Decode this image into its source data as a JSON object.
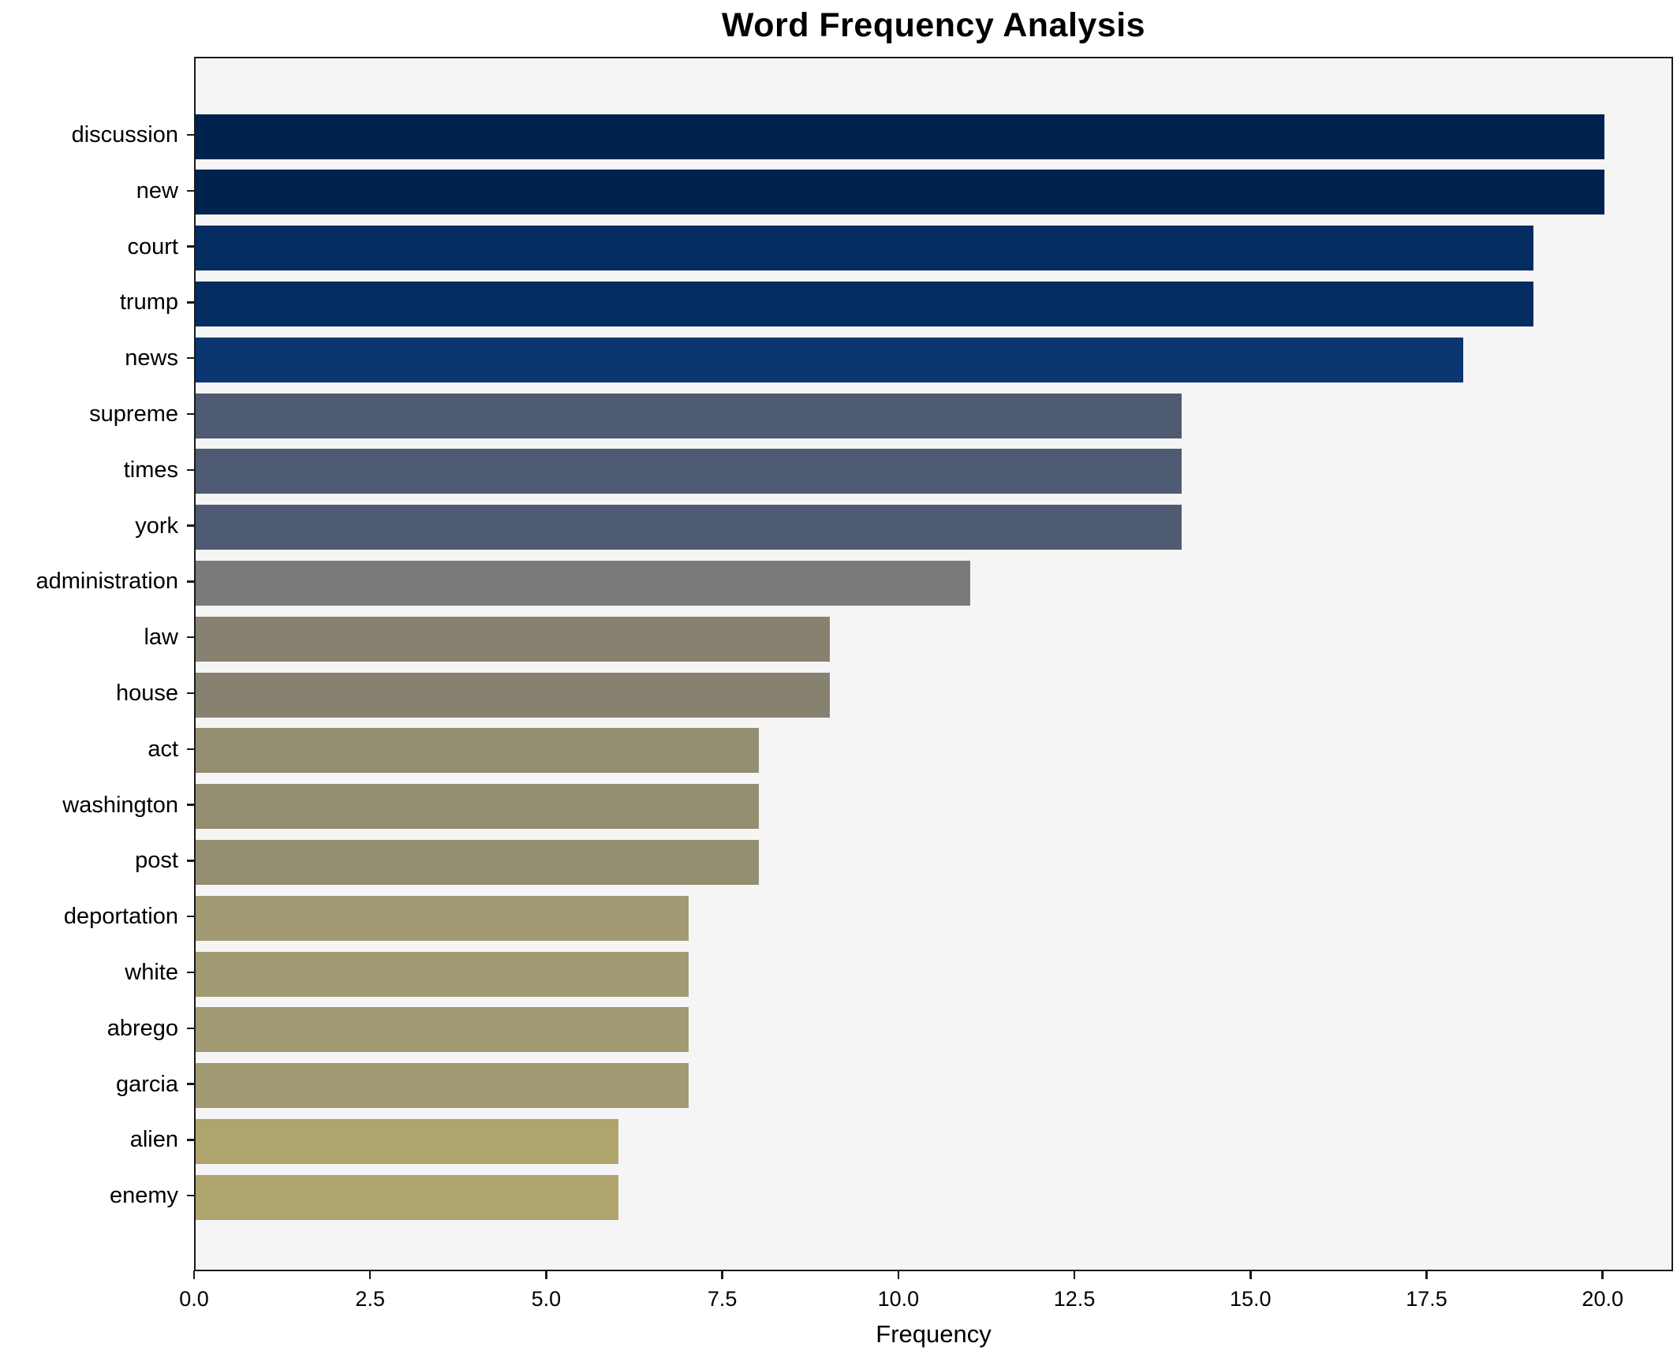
{
  "chart_data": {
    "type": "bar",
    "orientation": "horizontal",
    "title": "Word Frequency Analysis",
    "xlabel": "Frequency",
    "ylabel": "",
    "categories": [
      "discussion",
      "new",
      "court",
      "trump",
      "news",
      "supreme",
      "times",
      "york",
      "administration",
      "law",
      "house",
      "act",
      "washington",
      "post",
      "deportation",
      "white",
      "abrego",
      "garcia",
      "alien",
      "enemy"
    ],
    "values": [
      20,
      20,
      19,
      19,
      18,
      14,
      14,
      14,
      11,
      9,
      9,
      8,
      8,
      8,
      7,
      7,
      7,
      7,
      6,
      6
    ],
    "bar_colors": [
      "#00224e",
      "#00224e",
      "#032c60",
      "#032c60",
      "#0b3571",
      "#4f5a73",
      "#4f5a73",
      "#4f5a73",
      "#7a7a78",
      "#878270",
      "#878270",
      "#948e71",
      "#948e71",
      "#948e71",
      "#a29a72",
      "#a29a72",
      "#a29a72",
      "#a29a72",
      "#b0a46e",
      "#b0a46e"
    ],
    "xlim": [
      0,
      21
    ],
    "xticks": [
      0.0,
      2.5,
      5.0,
      7.5,
      10.0,
      12.5,
      15.0,
      17.5,
      20.0
    ],
    "xtick_labels": [
      "0.0",
      "2.5",
      "5.0",
      "7.5",
      "10.0",
      "12.5",
      "15.0",
      "17.5",
      "20.0"
    ],
    "grid": false,
    "legend": false,
    "plot_background": "#f5f5f6",
    "figure_background": "#ffffff",
    "spine_color": "#1a1a1a"
  }
}
